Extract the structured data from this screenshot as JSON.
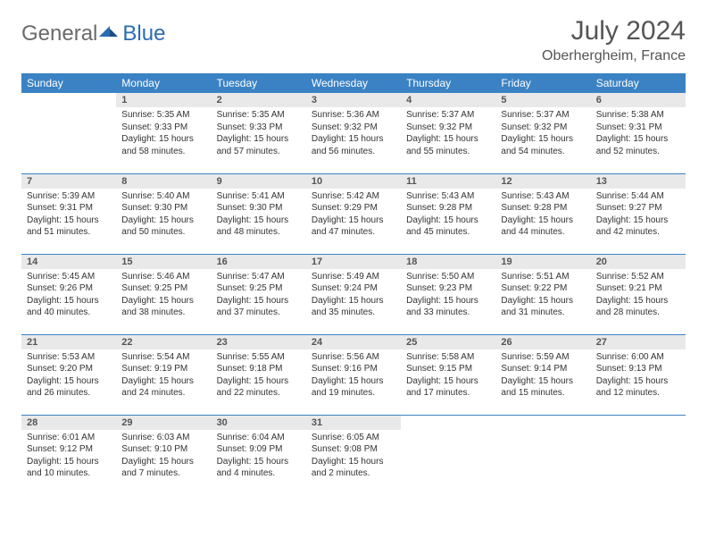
{
  "logo": {
    "general": "General",
    "blue": "Blue"
  },
  "title": "July 2024",
  "location": "Oberhergheim, France",
  "colors": {
    "header_bg": "#3b82c4",
    "header_text": "#ffffff",
    "daynum_bg": "#e9e9e9",
    "border": "#3b82c4",
    "logo_gray": "#6a6a6a",
    "logo_blue": "#2b6cb0"
  },
  "weekdays": [
    "Sunday",
    "Monday",
    "Tuesday",
    "Wednesday",
    "Thursday",
    "Friday",
    "Saturday"
  ],
  "startOffset": 1,
  "days": [
    {
      "n": 1,
      "sunrise": "5:35 AM",
      "sunset": "9:33 PM",
      "daylight": "15 hours and 58 minutes."
    },
    {
      "n": 2,
      "sunrise": "5:35 AM",
      "sunset": "9:33 PM",
      "daylight": "15 hours and 57 minutes."
    },
    {
      "n": 3,
      "sunrise": "5:36 AM",
      "sunset": "9:32 PM",
      "daylight": "15 hours and 56 minutes."
    },
    {
      "n": 4,
      "sunrise": "5:37 AM",
      "sunset": "9:32 PM",
      "daylight": "15 hours and 55 minutes."
    },
    {
      "n": 5,
      "sunrise": "5:37 AM",
      "sunset": "9:32 PM",
      "daylight": "15 hours and 54 minutes."
    },
    {
      "n": 6,
      "sunrise": "5:38 AM",
      "sunset": "9:31 PM",
      "daylight": "15 hours and 52 minutes."
    },
    {
      "n": 7,
      "sunrise": "5:39 AM",
      "sunset": "9:31 PM",
      "daylight": "15 hours and 51 minutes."
    },
    {
      "n": 8,
      "sunrise": "5:40 AM",
      "sunset": "9:30 PM",
      "daylight": "15 hours and 50 minutes."
    },
    {
      "n": 9,
      "sunrise": "5:41 AM",
      "sunset": "9:30 PM",
      "daylight": "15 hours and 48 minutes."
    },
    {
      "n": 10,
      "sunrise": "5:42 AM",
      "sunset": "9:29 PM",
      "daylight": "15 hours and 47 minutes."
    },
    {
      "n": 11,
      "sunrise": "5:43 AM",
      "sunset": "9:28 PM",
      "daylight": "15 hours and 45 minutes."
    },
    {
      "n": 12,
      "sunrise": "5:43 AM",
      "sunset": "9:28 PM",
      "daylight": "15 hours and 44 minutes."
    },
    {
      "n": 13,
      "sunrise": "5:44 AM",
      "sunset": "9:27 PM",
      "daylight": "15 hours and 42 minutes."
    },
    {
      "n": 14,
      "sunrise": "5:45 AM",
      "sunset": "9:26 PM",
      "daylight": "15 hours and 40 minutes."
    },
    {
      "n": 15,
      "sunrise": "5:46 AM",
      "sunset": "9:25 PM",
      "daylight": "15 hours and 38 minutes."
    },
    {
      "n": 16,
      "sunrise": "5:47 AM",
      "sunset": "9:25 PM",
      "daylight": "15 hours and 37 minutes."
    },
    {
      "n": 17,
      "sunrise": "5:49 AM",
      "sunset": "9:24 PM",
      "daylight": "15 hours and 35 minutes."
    },
    {
      "n": 18,
      "sunrise": "5:50 AM",
      "sunset": "9:23 PM",
      "daylight": "15 hours and 33 minutes."
    },
    {
      "n": 19,
      "sunrise": "5:51 AM",
      "sunset": "9:22 PM",
      "daylight": "15 hours and 31 minutes."
    },
    {
      "n": 20,
      "sunrise": "5:52 AM",
      "sunset": "9:21 PM",
      "daylight": "15 hours and 28 minutes."
    },
    {
      "n": 21,
      "sunrise": "5:53 AM",
      "sunset": "9:20 PM",
      "daylight": "15 hours and 26 minutes."
    },
    {
      "n": 22,
      "sunrise": "5:54 AM",
      "sunset": "9:19 PM",
      "daylight": "15 hours and 24 minutes."
    },
    {
      "n": 23,
      "sunrise": "5:55 AM",
      "sunset": "9:18 PM",
      "daylight": "15 hours and 22 minutes."
    },
    {
      "n": 24,
      "sunrise": "5:56 AM",
      "sunset": "9:16 PM",
      "daylight": "15 hours and 19 minutes."
    },
    {
      "n": 25,
      "sunrise": "5:58 AM",
      "sunset": "9:15 PM",
      "daylight": "15 hours and 17 minutes."
    },
    {
      "n": 26,
      "sunrise": "5:59 AM",
      "sunset": "9:14 PM",
      "daylight": "15 hours and 15 minutes."
    },
    {
      "n": 27,
      "sunrise": "6:00 AM",
      "sunset": "9:13 PM",
      "daylight": "15 hours and 12 minutes."
    },
    {
      "n": 28,
      "sunrise": "6:01 AM",
      "sunset": "9:12 PM",
      "daylight": "15 hours and 10 minutes."
    },
    {
      "n": 29,
      "sunrise": "6:03 AM",
      "sunset": "9:10 PM",
      "daylight": "15 hours and 7 minutes."
    },
    {
      "n": 30,
      "sunrise": "6:04 AM",
      "sunset": "9:09 PM",
      "daylight": "15 hours and 4 minutes."
    },
    {
      "n": 31,
      "sunrise": "6:05 AM",
      "sunset": "9:08 PM",
      "daylight": "15 hours and 2 minutes."
    }
  ],
  "labels": {
    "sunrise": "Sunrise: ",
    "sunset": "Sunset: ",
    "daylight": "Daylight: "
  }
}
